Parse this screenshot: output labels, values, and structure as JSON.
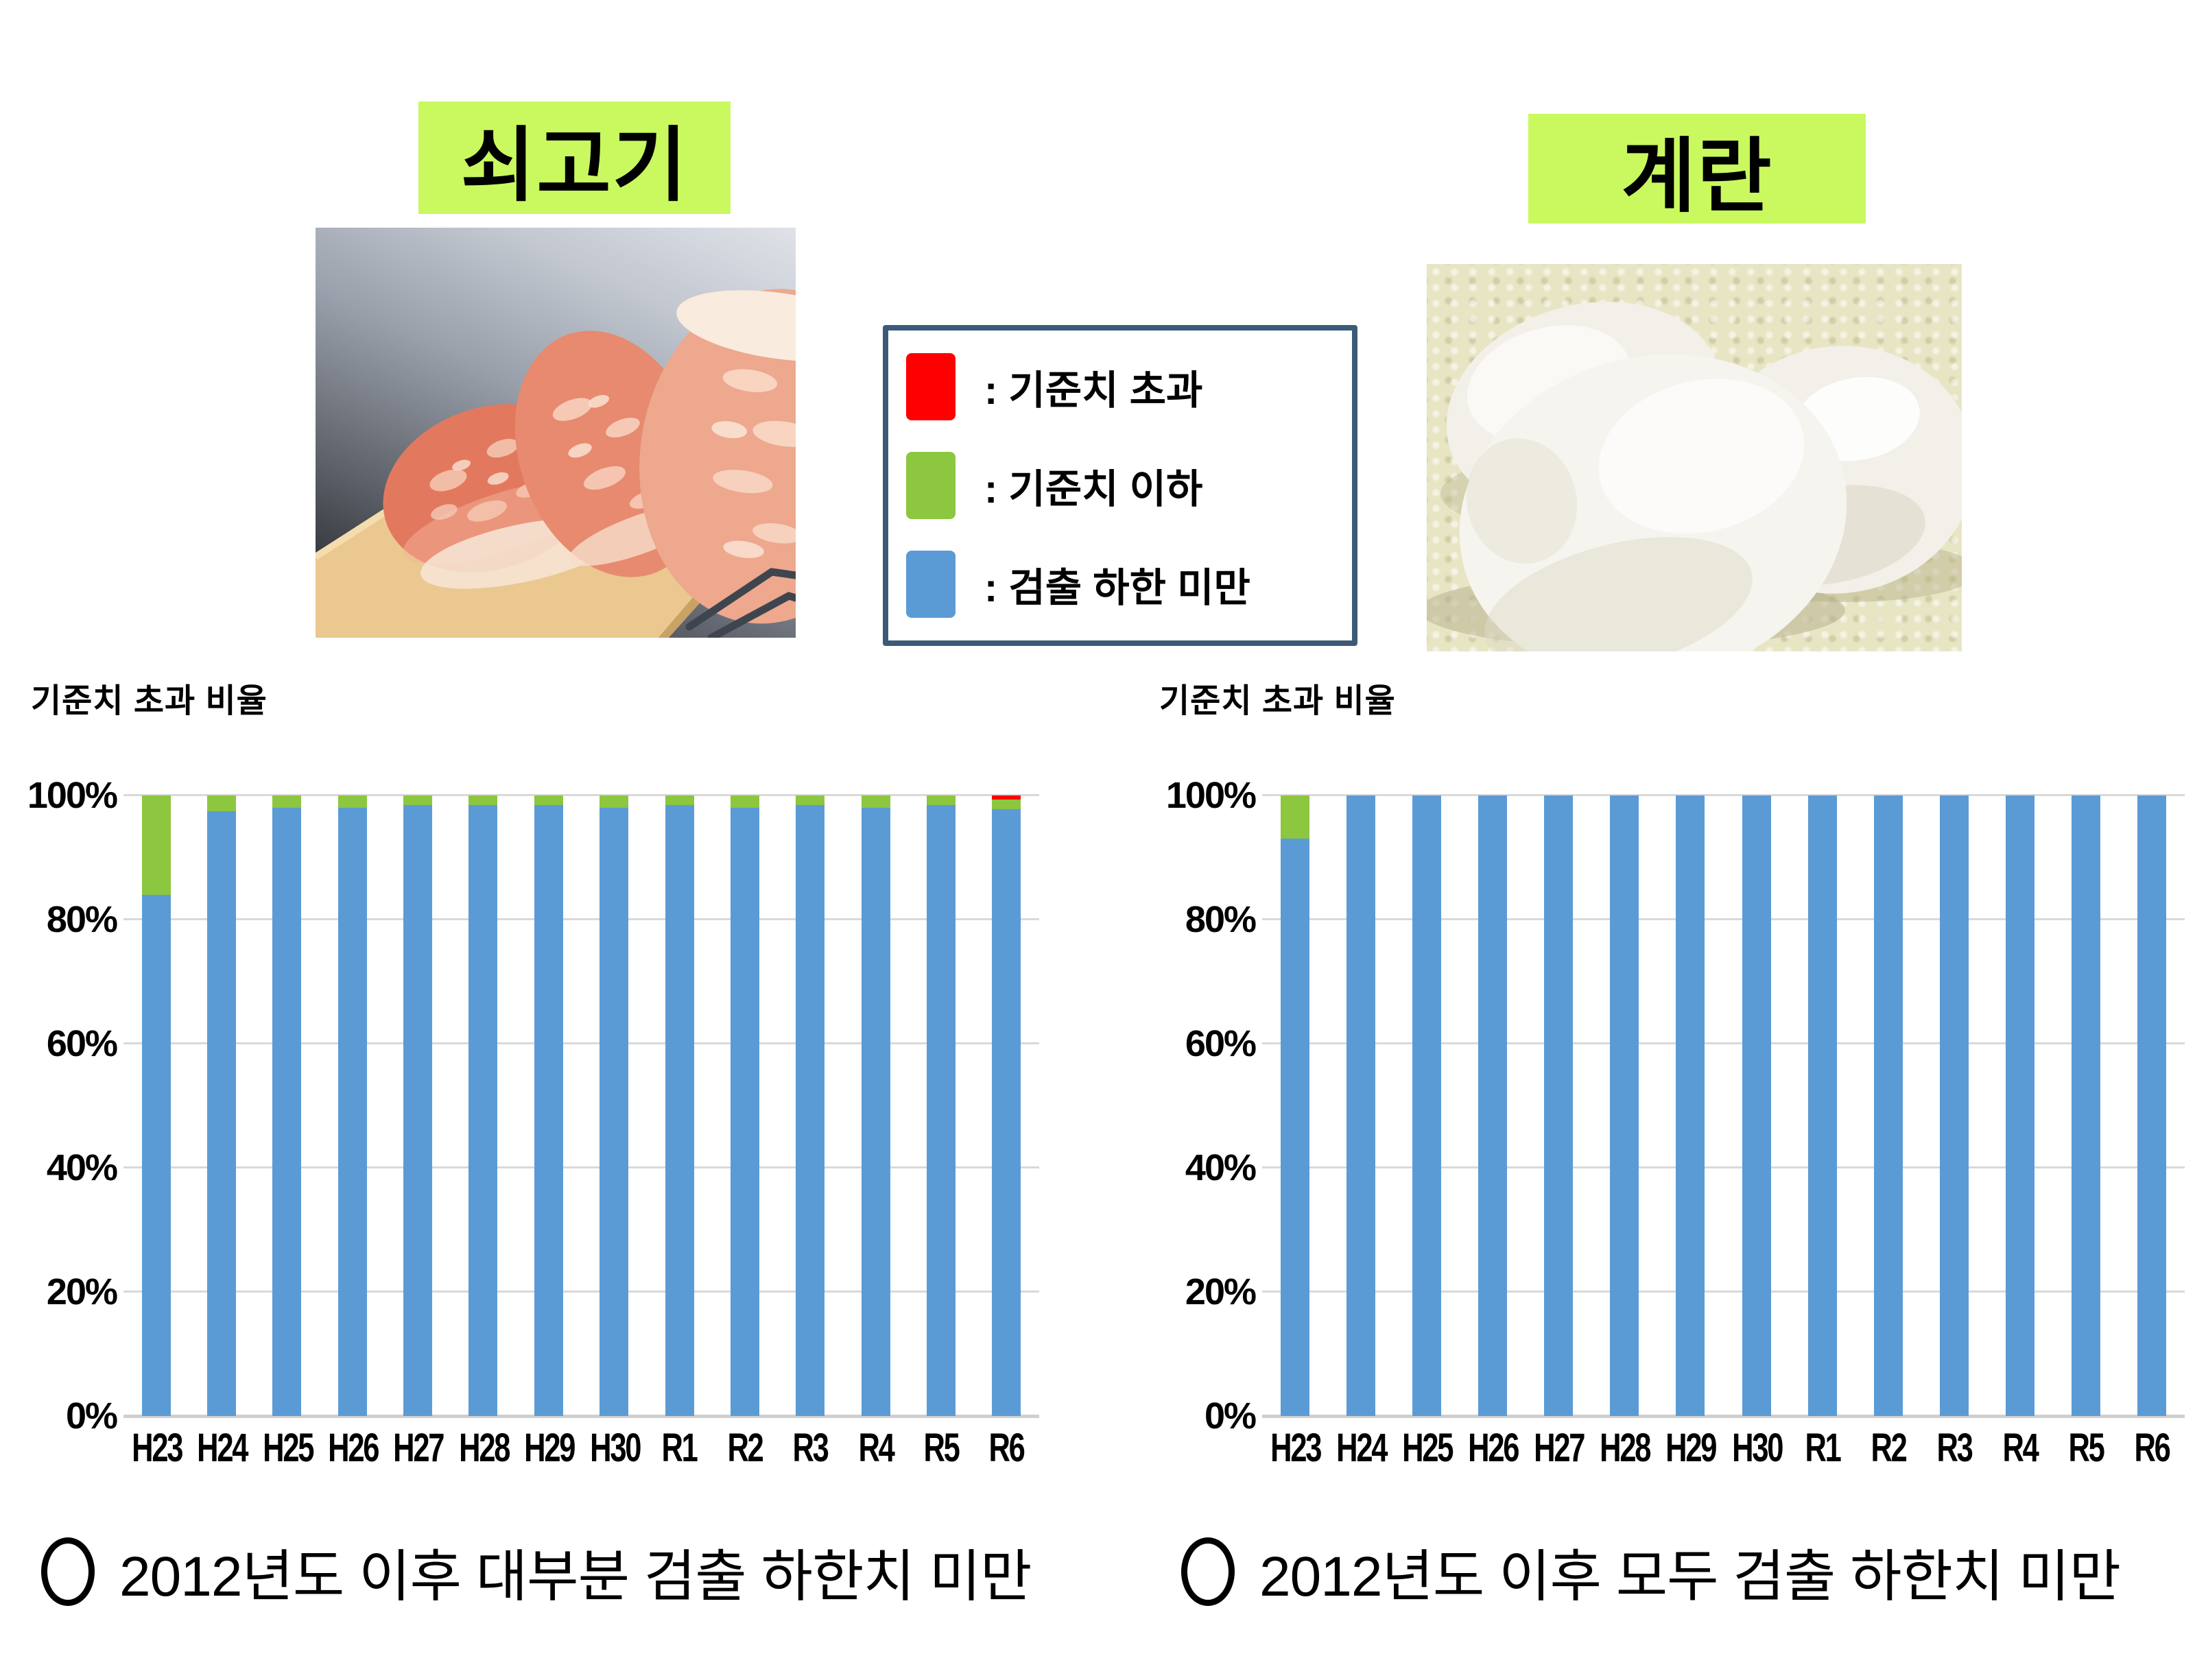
{
  "slide": {
    "highlight_color": "#c9f95f",
    "product_left": "쇠고기",
    "product_right": "계란",
    "legend": {
      "border_color": "#3c5a78",
      "items": [
        {
          "name": "exceeds-standard",
          "color": "#ff0000",
          "label": ": 기준치 초과"
        },
        {
          "name": "below-standard",
          "color": "#8dc63f",
          "label": ": 기준치 이하"
        },
        {
          "name": "below-detection-limit",
          "color": "#5b9bd5",
          "label": ": 검출 하한 미만"
        }
      ]
    },
    "notes": {
      "left": "2012년도 이후 대부분 검출 하한치 미만",
      "right": "2012년도 이후 모두 검출 하한치 미만"
    }
  },
  "chart_data": [
    {
      "type": "bar",
      "stacked": true,
      "subject": "쇠고기",
      "title": "기준치 초과 비율",
      "categories": [
        "H23",
        "H24",
        "H25",
        "H26",
        "H27",
        "H28",
        "H29",
        "H30",
        "R1",
        "R2",
        "R3",
        "R4",
        "R5",
        "R6"
      ],
      "series": [
        {
          "name": "검출 하한 미만",
          "color": "#5b9bd5",
          "values": [
            84,
            97.5,
            98,
            98,
            98.5,
            98.5,
            98.5,
            98,
            98.5,
            98,
            98.5,
            98,
            98.5,
            97.8
          ]
        },
        {
          "name": "기준치 이하",
          "color": "#8dc63f",
          "values": [
            16,
            2.5,
            2,
            2,
            1.5,
            1.5,
            1.5,
            2,
            1.5,
            2,
            1.5,
            2,
            1.5,
            1.5
          ]
        },
        {
          "name": "기준치 초과",
          "color": "#ff0000",
          "values": [
            0,
            0,
            0,
            0,
            0,
            0,
            0,
            0,
            0,
            0,
            0,
            0,
            0,
            0.7
          ]
        }
      ],
      "ylim": [
        0,
        100
      ],
      "yticks": [
        0,
        20,
        40,
        60,
        80,
        100
      ],
      "ytick_format": "percent",
      "grid": true,
      "legend_position": "separate-box"
    },
    {
      "type": "bar",
      "stacked": true,
      "subject": "계란",
      "title": "기준치 초과 비율",
      "categories": [
        "H23",
        "H24",
        "H25",
        "H26",
        "H27",
        "H28",
        "H29",
        "H30",
        "R1",
        "R2",
        "R3",
        "R4",
        "R5",
        "R6"
      ],
      "series": [
        {
          "name": "검출 하한 미만",
          "color": "#5b9bd5",
          "values": [
            93,
            100,
            100,
            100,
            100,
            100,
            100,
            100,
            100,
            100,
            100,
            100,
            100,
            100
          ]
        },
        {
          "name": "기준치 이하",
          "color": "#8dc63f",
          "values": [
            7,
            0,
            0,
            0,
            0,
            0,
            0,
            0,
            0,
            0,
            0,
            0,
            0,
            0
          ]
        },
        {
          "name": "기준치 초과",
          "color": "#ff0000",
          "values": [
            0,
            0,
            0,
            0,
            0,
            0,
            0,
            0,
            0,
            0,
            0,
            0,
            0,
            0
          ]
        }
      ],
      "ylim": [
        0,
        100
      ],
      "yticks": [
        0,
        20,
        40,
        60,
        80,
        100
      ],
      "ytick_format": "percent",
      "grid": true,
      "legend_position": "separate-box"
    }
  ]
}
